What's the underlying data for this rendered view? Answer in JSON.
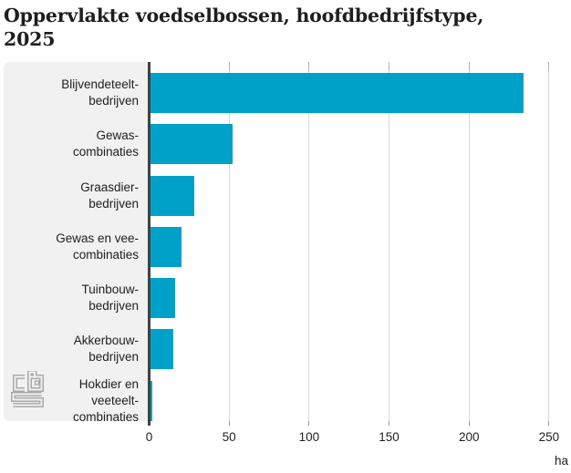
{
  "header": {
    "title_line1": "Oppervlakte voedselbossen, hoofdbedrijfstype,",
    "title_line2": "2025"
  },
  "chart_data": {
    "type": "bar",
    "orientation": "horizontal",
    "title": "Oppervlakte voedselbossen, hoofdbedrijfstype, 2025",
    "unit": "ha",
    "categories": [
      "Blijvendeteelt-bedrijven",
      "Gewas-combinaties",
      "Graasdier-bedrijven",
      "Gewas en vee-combinaties",
      "Tuinbouw-bedrijven",
      "Akkerbouw-bedrijven",
      "Hokdier en veeteelt-combinaties"
    ],
    "category_label_lines": [
      [
        "Blijvendeteelt-",
        "bedrijven"
      ],
      [
        "Gewas-",
        "combinaties"
      ],
      [
        "Graasdier-",
        "bedrijven"
      ],
      [
        "Gewas en vee-",
        "combinaties"
      ],
      [
        "Tuinbouw-",
        "bedrijven"
      ],
      [
        "Akkerbouw-",
        "bedrijven"
      ],
      [
        "Hokdier en",
        "veeteelt-",
        "combinaties"
      ]
    ],
    "values": [
      234,
      52,
      28,
      20,
      16,
      15,
      2
    ],
    "x_ticks": [
      0,
      50,
      100,
      150,
      200,
      250
    ],
    "xlim": [
      0,
      260
    ],
    "grid": true,
    "legend": false,
    "bar_color": "#00a1c9",
    "source_logo": "cbs"
  },
  "colors": {
    "bar": "#00a1c9",
    "label_panel_bg": "#f1f1f1",
    "axis_line": "#414141",
    "gridline": "#d9d9d9",
    "tick_top": "#b3b3b3",
    "tick_bottom": "#9a9a9a",
    "text": "#1e1e1e",
    "logo": "#a9a9a9"
  }
}
